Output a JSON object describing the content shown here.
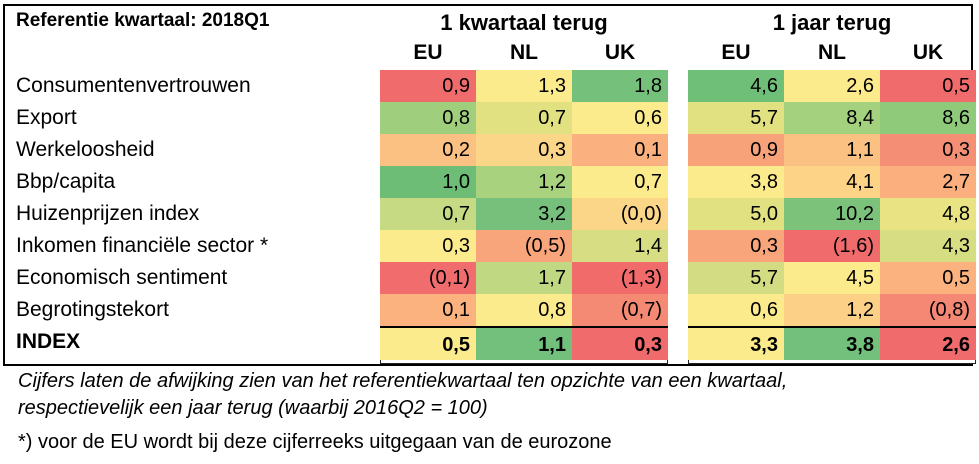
{
  "title": "Referentie kwartaal: 2018Q1",
  "groups": [
    {
      "label": "1 kwartaal terug",
      "columns": [
        "EU",
        "NL",
        "UK"
      ]
    },
    {
      "label": "1 jaar terug",
      "columns": [
        "EU",
        "NL",
        "UK"
      ]
    }
  ],
  "rows": [
    {
      "label": "Consumentenvertrouwen",
      "is_index": false,
      "values": [
        "0,9",
        "1,3",
        "1,8",
        "4,6",
        "2,6",
        "0,5"
      ],
      "colors": [
        "#f06b6b",
        "#fbeb8c",
        "#75c17c",
        "#6fbf78",
        "#fbeb8c",
        "#f06b6b"
      ]
    },
    {
      "label": "Export",
      "is_index": false,
      "values": [
        "0,8",
        "0,7",
        "0,6",
        "5,7",
        "8,4",
        "8,6"
      ],
      "colors": [
        "#9fcf7d",
        "#e2e182",
        "#fbeb8c",
        "#e2e182",
        "#a4d17e",
        "#8fca7b"
      ]
    },
    {
      "label": "Werkeloosheid",
      "is_index": false,
      "values": [
        "0,2",
        "0,3",
        "0,1",
        "0,9",
        "1,1",
        "0,3"
      ],
      "colors": [
        "#fbc182",
        "#fbd688",
        "#fab07f",
        "#f8a27a",
        "#fbc182",
        "#f48f76"
      ]
    },
    {
      "label": "Bbp/capita",
      "is_index": false,
      "values": [
        "1,0",
        "1,2",
        "0,7",
        "3,8",
        "4,1",
        "2,7"
      ],
      "colors": [
        "#6dbd77",
        "#a9d27f",
        "#fbeb8c",
        "#fbeb8c",
        "#fdd487",
        "#fbae7e"
      ]
    },
    {
      "label": "Huizenprijzen index",
      "is_index": false,
      "values": [
        "0,7",
        "3,2",
        "(0,0)",
        "5,0",
        "10,2",
        "4,8"
      ],
      "colors": [
        "#c5da82",
        "#76c07c",
        "#fbd688",
        "#e2e182",
        "#7cc27b",
        "#e9e384"
      ]
    },
    {
      "label": "Inkomen financiële sector *",
      "is_index": false,
      "values": [
        "0,3",
        "(0,5)",
        "1,4",
        "0,3",
        "(1,6)",
        "4,3"
      ],
      "colors": [
        "#fbeb8c",
        "#f8a57b",
        "#d7dd82",
        "#f8a57b",
        "#f06b6b",
        "#d7dd82"
      ]
    },
    {
      "label": "Economisch sentiment",
      "is_index": false,
      "values": [
        "(0,1)",
        "1,7",
        "(1,3)",
        "5,7",
        "4,5",
        "0,5"
      ],
      "colors": [
        "#f16d6d",
        "#c1d882",
        "#f16b6b",
        "#d3dc82",
        "#fbeb8c",
        "#fbb27f"
      ]
    },
    {
      "label": "Begrotingstekort",
      "is_index": false,
      "values": [
        "0,1",
        "0,8",
        "(0,7)",
        "0,6",
        "1,2",
        "(0,8)"
      ],
      "colors": [
        "#fbb27f",
        "#fbeb8c",
        "#f48a74",
        "#fbeb8c",
        "#fcd087",
        "#f48874"
      ]
    },
    {
      "label": "INDEX",
      "is_index": true,
      "values": [
        "0,5",
        "1,1",
        "0,3",
        "3,3",
        "3,8",
        "2,6"
      ],
      "colors": [
        "#fbeb8c",
        "#72c07b",
        "#f06b6b",
        "#fbeb8c",
        "#72c07b",
        "#f06b6b"
      ]
    }
  ],
  "caption_line1": "Cijfers laten de afwijking zien van het referentiekwartaal ten opzichte van een kwartaal,",
  "caption_line2": "respectievelijk een jaar terug (waarbij 2016Q2 = 100)",
  "footnote": "*) voor de EU wordt bij deze cijferreeks uitgegaan van de eurozone"
}
